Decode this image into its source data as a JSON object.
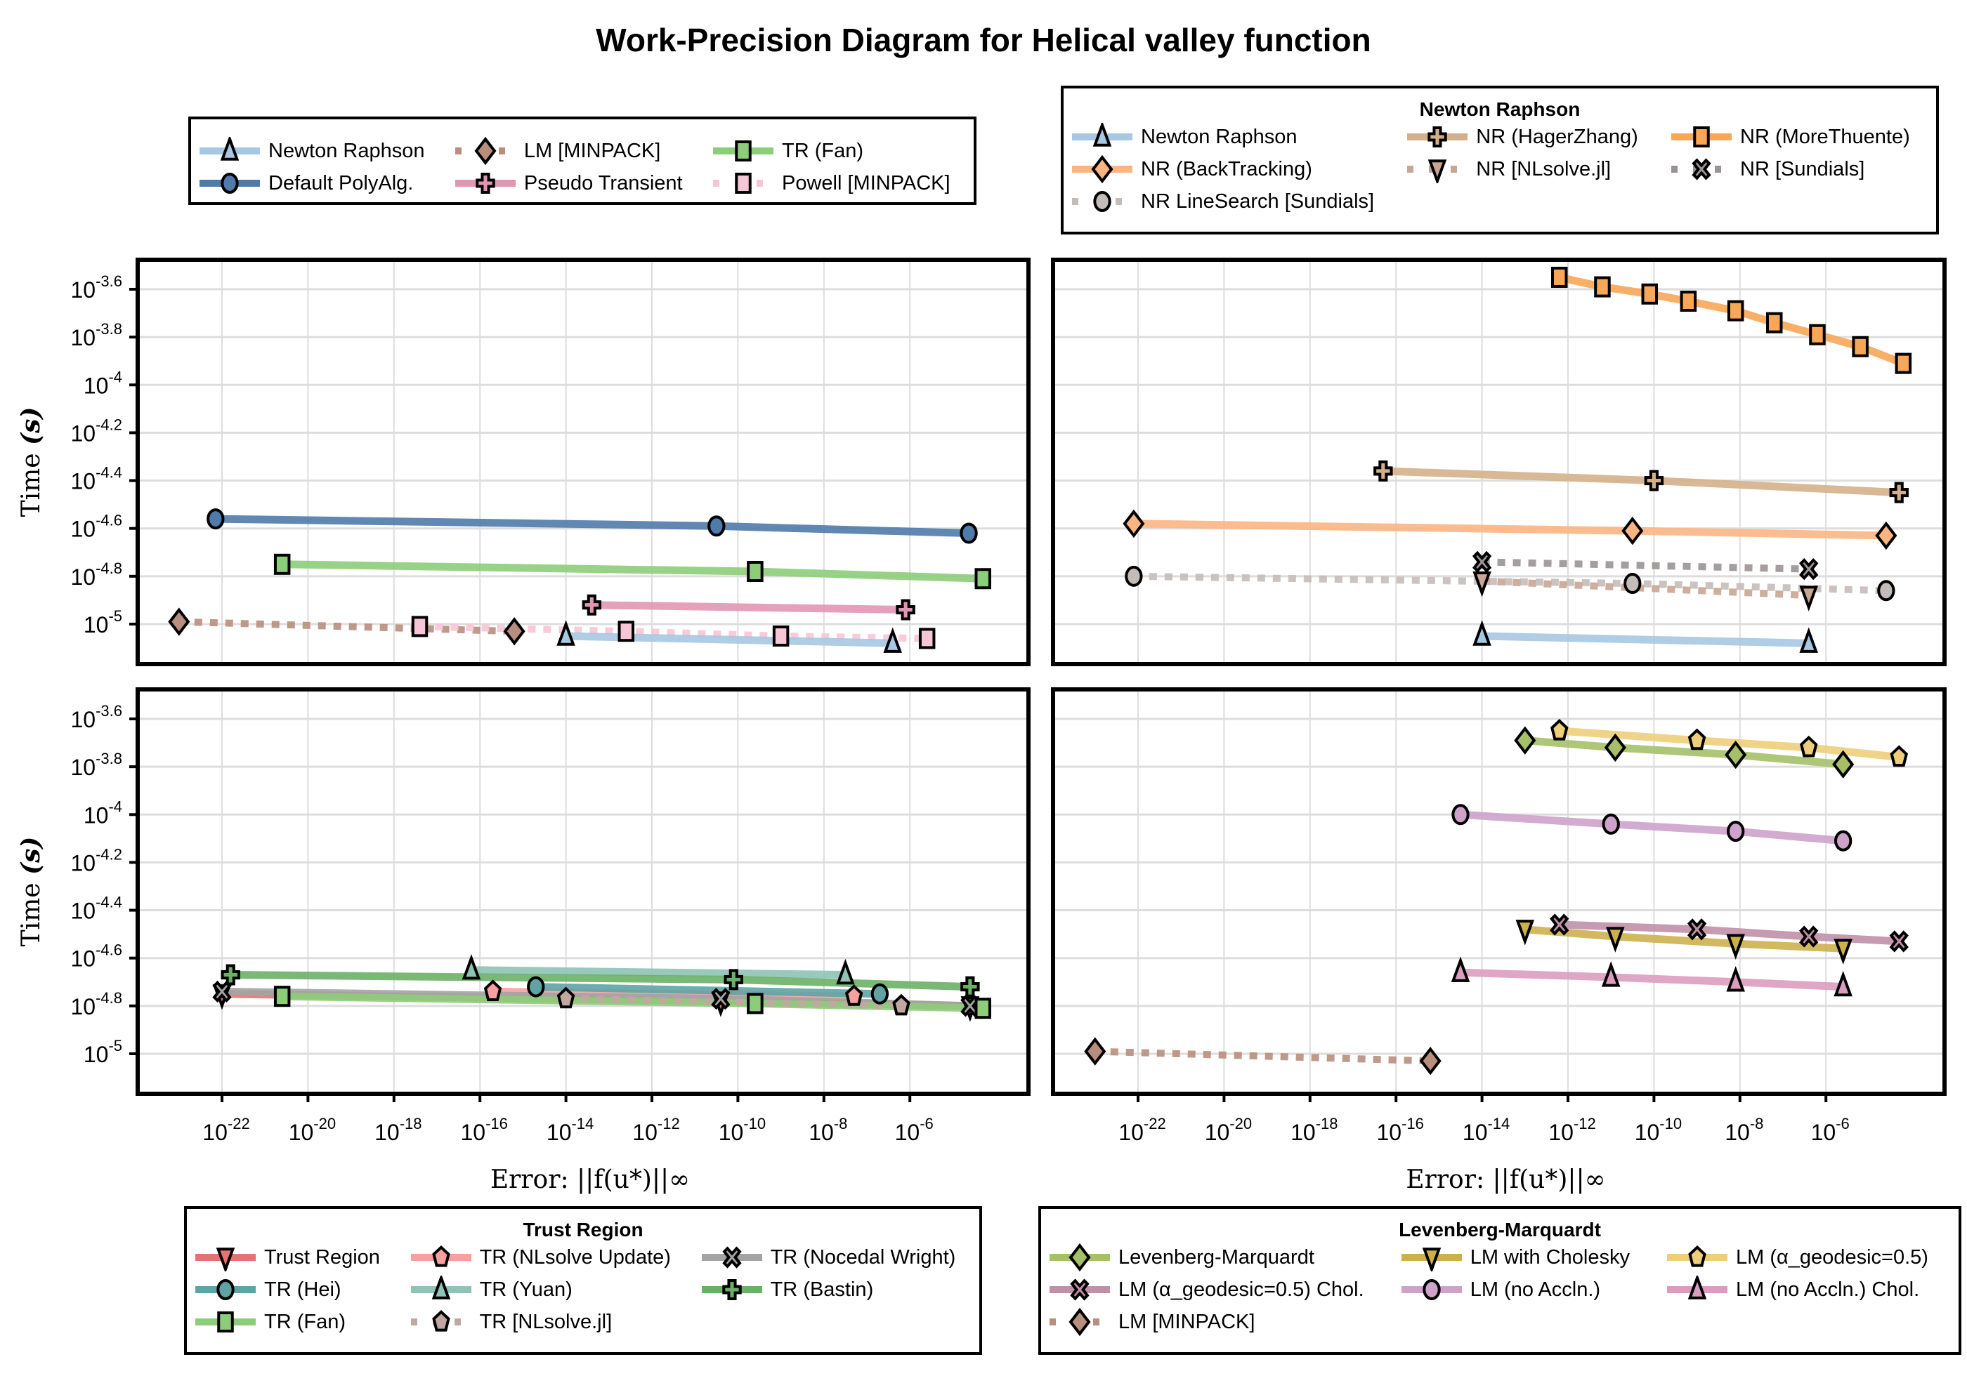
{
  "title": "Work-Precision Diagram for Helical valley function",
  "colors": {
    "newton_raphson": "#a6c8e2",
    "default_polyalg": "#4f7bab",
    "lm_minpack": "#b88f7e",
    "pseudo_transient": "#e296b3",
    "tr_fan": "#8ccd7a",
    "powell_minpack": "#f6c5d6",
    "nr_backtracking": "#fbb583",
    "nr_hagerzhang": "#d4b08a",
    "nr_morethuente": "#f8a657",
    "nr_nlsolve": "#c9a594",
    "nr_sundials": "#9b9393",
    "nr_linesearch_sundials": "#c4bcb9",
    "trust_region": "#e57373",
    "tr_nlsolve_update": "#f7a09e",
    "tr_nocedal_wright": "#a3a3a3",
    "tr_hei": "#5fa3a5",
    "tr_yuan": "#8ec3b5",
    "tr_bastin": "#6ab066",
    "tr_nlsolve": "#c0a8a0",
    "levenberg_marquardt": "#a5c068",
    "lm_cholesky": "#cdb04c",
    "lm_geodesic": "#efce7a",
    "lm_geodesic_chol": "#c08fa8",
    "lm_no_accln": "#cfa2cb",
    "lm_no_accln_chol": "#dc9cc0"
  },
  "legends": {
    "main": {
      "items": [
        {
          "label": "Newton Raphson",
          "key": "newton_raphson",
          "marker": "triangle-up",
          "style": "solid"
        },
        {
          "label": "LM [MINPACK]",
          "key": "lm_minpack",
          "marker": "diamond",
          "style": "dotted"
        },
        {
          "label": "TR (Fan)",
          "key": "tr_fan",
          "marker": "square",
          "style": "solid"
        },
        {
          "label": "Default PolyAlg.",
          "key": "default_polyalg",
          "marker": "circle",
          "style": "solid"
        },
        {
          "label": "Pseudo Transient",
          "key": "pseudo_transient",
          "marker": "cross",
          "style": "solid"
        },
        {
          "label": "Powell [MINPACK]",
          "key": "powell_minpack",
          "marker": "square",
          "style": "dotted"
        }
      ]
    },
    "newton_raphson": {
      "title": "Newton Raphson",
      "items": [
        {
          "label": "Newton Raphson",
          "key": "newton_raphson",
          "marker": "triangle-up",
          "style": "solid"
        },
        {
          "label": "NR (HagerZhang)",
          "key": "nr_hagerzhang",
          "marker": "cross",
          "style": "solid"
        },
        {
          "label": "NR (MoreThuente)",
          "key": "nr_morethuente",
          "marker": "square",
          "style": "solid"
        },
        {
          "label": "NR (BackTracking)",
          "key": "nr_backtracking",
          "marker": "diamond",
          "style": "solid"
        },
        {
          "label": "NR [NLsolve.jl]",
          "key": "nr_nlsolve",
          "marker": "triangle-down",
          "style": "dotted"
        },
        {
          "label": "NR [Sundials]",
          "key": "nr_sundials",
          "marker": "xcross",
          "style": "dotted"
        },
        {
          "label": "NR LineSearch [Sundials]",
          "key": "nr_linesearch_sundials",
          "marker": "circle",
          "style": "dotted"
        }
      ]
    },
    "trust_region": {
      "title": "Trust Region",
      "items": [
        {
          "label": "Trust Region",
          "key": "trust_region",
          "marker": "triangle-down",
          "style": "solid"
        },
        {
          "label": "TR (NLsolve Update)",
          "key": "tr_nlsolve_update",
          "marker": "pentagon",
          "style": "solid"
        },
        {
          "label": "TR (Nocedal Wright)",
          "key": "tr_nocedal_wright",
          "marker": "xcross",
          "style": "solid"
        },
        {
          "label": "TR (Hei)",
          "key": "tr_hei",
          "marker": "circle",
          "style": "solid"
        },
        {
          "label": "TR (Yuan)",
          "key": "tr_yuan",
          "marker": "triangle-up",
          "style": "solid"
        },
        {
          "label": "TR (Bastin)",
          "key": "tr_bastin",
          "marker": "cross",
          "style": "solid"
        },
        {
          "label": "TR (Fan)",
          "key": "tr_fan",
          "marker": "square",
          "style": "solid"
        },
        {
          "label": "TR [NLsolve.jl]",
          "key": "tr_nlsolve",
          "marker": "pentagon",
          "style": "dotted"
        }
      ]
    },
    "levenberg_marquardt": {
      "title": "Levenberg-Marquardt",
      "items": [
        {
          "label": "Levenberg-Marquardt",
          "key": "levenberg_marquardt",
          "marker": "diamond",
          "style": "solid"
        },
        {
          "label": "LM with Cholesky",
          "key": "lm_cholesky",
          "marker": "triangle-down",
          "style": "solid"
        },
        {
          "label": "LM (α_geodesic=0.5)",
          "key": "lm_geodesic",
          "marker": "pentagon",
          "style": "solid"
        },
        {
          "label": "LM (α_geodesic=0.5) Chol.",
          "key": "lm_geodesic_chol",
          "marker": "xcross",
          "style": "solid"
        },
        {
          "label": "LM (no Accln.)",
          "key": "lm_no_accln",
          "marker": "circle",
          "style": "solid"
        },
        {
          "label": "LM (no Accln.) Chol.",
          "key": "lm_no_accln_chol",
          "marker": "triangle-up",
          "style": "solid"
        },
        {
          "label": "LM [MINPACK]",
          "key": "lm_minpack",
          "marker": "diamond",
          "style": "dotted"
        }
      ]
    }
  },
  "chart_data": [
    {
      "type": "line",
      "panel": "top-left",
      "xlabel": "",
      "ylabel": "Time (s)",
      "xscale": "log10",
      "yscale": "log10",
      "xlim_log10": [
        -24.0,
        -3.2
      ],
      "ylim_log10": [
        -5.17,
        -3.48
      ],
      "x_ticks": [
        "10^-22",
        "10^-20",
        "10^-18",
        "10^-16",
        "10^-14",
        "10^-12",
        "10^-10",
        "10^-8",
        "10^-6"
      ],
      "y_ticks": [
        "10^-3.6",
        "10^-3.8",
        "10^-4",
        "10^-4.2",
        "10^-4.4",
        "10^-4.6",
        "10^-4.8",
        "10^-5"
      ],
      "grid": true,
      "series": [
        {
          "name": "Default PolyAlg.",
          "key": "default_polyalg",
          "marker": "circle",
          "style": "solid",
          "x_log10": [
            -22.15,
            -10.5,
            -4.63
          ],
          "y_log10": [
            -4.56,
            -4.59,
            -4.62
          ]
        },
        {
          "name": "TR (Fan)",
          "key": "tr_fan",
          "marker": "square",
          "style": "solid",
          "x_log10": [
            -20.6,
            -9.6,
            -4.3
          ],
          "y_log10": [
            -4.75,
            -4.78,
            -4.81
          ]
        },
        {
          "name": "Pseudo Transient",
          "key": "pseudo_transient",
          "marker": "cross",
          "style": "solid",
          "x_log10": [
            -13.4,
            -6.1
          ],
          "y_log10": [
            -4.92,
            -4.94
          ]
        },
        {
          "name": "LM [MINPACK]",
          "key": "lm_minpack",
          "marker": "diamond",
          "style": "dotted",
          "x_log10": [
            -23.0,
            -15.2
          ],
          "y_log10": [
            -4.99,
            -5.03
          ]
        },
        {
          "name": "Powell [MINPACK]",
          "key": "powell_minpack",
          "marker": "square",
          "style": "dotted",
          "x_log10": [
            -17.4,
            -12.6,
            -9.0,
            -5.6
          ],
          "y_log10": [
            -5.01,
            -5.03,
            -5.05,
            -5.06
          ]
        },
        {
          "name": "Newton Raphson",
          "key": "newton_raphson",
          "marker": "triangle-up",
          "style": "solid",
          "x_log10": [
            -14.0,
            -6.4
          ],
          "y_log10": [
            -5.05,
            -5.08
          ]
        }
      ]
    },
    {
      "type": "line",
      "panel": "top-right",
      "xlabel": "",
      "ylabel": "",
      "xscale": "log10",
      "yscale": "log10",
      "xlim_log10": [
        -24.0,
        -3.2
      ],
      "ylim_log10": [
        -5.17,
        -3.48
      ],
      "grid": true,
      "series": [
        {
          "name": "NR (MoreThuente)",
          "key": "nr_morethuente",
          "marker": "square",
          "style": "solid",
          "x_log10": [
            -12.2,
            -11.2,
            -10.1,
            -9.2,
            -8.1,
            -7.2,
            -6.2,
            -5.2,
            -4.2
          ],
          "y_log10": [
            -3.55,
            -3.59,
            -3.62,
            -3.65,
            -3.69,
            -3.74,
            -3.79,
            -3.84,
            -3.91
          ]
        },
        {
          "name": "NR (HagerZhang)",
          "key": "nr_hagerzhang",
          "marker": "cross",
          "style": "solid",
          "x_log10": [
            -16.3,
            -10.0,
            -4.3
          ],
          "y_log10": [
            -4.36,
            -4.4,
            -4.45
          ]
        },
        {
          "name": "NR (BackTracking)",
          "key": "nr_backtracking",
          "marker": "diamond",
          "style": "solid",
          "x_log10": [
            -22.1,
            -10.5,
            -4.6
          ],
          "y_log10": [
            -4.58,
            -4.61,
            -4.63
          ]
        },
        {
          "name": "NR [Sundials]",
          "key": "nr_sundials",
          "marker": "xcross",
          "style": "dotted",
          "x_log10": [
            -14.0,
            -6.4
          ],
          "y_log10": [
            -4.74,
            -4.77
          ]
        },
        {
          "name": "NR LineSearch [Sundials]",
          "key": "nr_linesearch_sundials",
          "marker": "circle",
          "style": "dotted",
          "x_log10": [
            -22.1,
            -10.5,
            -4.6
          ],
          "y_log10": [
            -4.8,
            -4.83,
            -4.86
          ]
        },
        {
          "name": "NR [NLsolve.jl]",
          "key": "nr_nlsolve",
          "marker": "triangle-down",
          "style": "dotted",
          "x_log10": [
            -14.0,
            -6.4
          ],
          "y_log10": [
            -4.82,
            -4.88
          ]
        },
        {
          "name": "Newton Raphson",
          "key": "newton_raphson",
          "marker": "triangle-up",
          "style": "solid",
          "x_log10": [
            -14.0,
            -6.4
          ],
          "y_log10": [
            -5.05,
            -5.08
          ]
        }
      ]
    },
    {
      "type": "line",
      "panel": "bottom-left",
      "xlabel": "Error: ||f(u*)||∞",
      "ylabel": "Time (s)",
      "xscale": "log10",
      "yscale": "log10",
      "xlim_log10": [
        -24.0,
        -3.2
      ],
      "ylim_log10": [
        -5.17,
        -3.48
      ],
      "grid": true,
      "series": [
        {
          "name": "Trust Region",
          "key": "trust_region",
          "marker": "triangle-down",
          "style": "solid",
          "x_log10": [
            -22.0,
            -10.4,
            -4.6
          ],
          "y_log10": [
            -4.75,
            -4.78,
            -4.8
          ]
        },
        {
          "name": "TR (NLsolve Update)",
          "key": "tr_nlsolve_update",
          "marker": "pentagon",
          "style": "solid",
          "x_log10": [
            -15.7,
            -7.3
          ],
          "y_log10": [
            -4.74,
            -4.76
          ]
        },
        {
          "name": "TR (Nocedal Wright)",
          "key": "tr_nocedal_wright",
          "marker": "xcross",
          "style": "solid",
          "x_log10": [
            -22.0,
            -10.4,
            -4.6
          ],
          "y_log10": [
            -4.74,
            -4.77,
            -4.8
          ]
        },
        {
          "name": "TR (Hei)",
          "key": "tr_hei",
          "marker": "circle",
          "style": "solid",
          "x_log10": [
            -14.7,
            -6.7
          ],
          "y_log10": [
            -4.72,
            -4.75
          ]
        },
        {
          "name": "TR (Yuan)",
          "key": "tr_yuan",
          "marker": "triangle-up",
          "style": "solid",
          "x_log10": [
            -16.2,
            -7.5
          ],
          "y_log10": [
            -4.65,
            -4.67
          ]
        },
        {
          "name": "TR (Bastin)",
          "key": "tr_bastin",
          "marker": "cross",
          "style": "solid",
          "x_log10": [
            -21.8,
            -10.1,
            -4.6
          ],
          "y_log10": [
            -4.67,
            -4.69,
            -4.72
          ]
        },
        {
          "name": "TR (Fan)",
          "key": "tr_fan",
          "marker": "square",
          "style": "solid",
          "x_log10": [
            -20.6,
            -9.6,
            -4.3
          ],
          "y_log10": [
            -4.76,
            -4.79,
            -4.81
          ]
        },
        {
          "name": "TR [NLsolve.jl]",
          "key": "tr_nlsolve",
          "marker": "pentagon",
          "style": "dotted",
          "x_log10": [
            -14.0,
            -6.2
          ],
          "y_log10": [
            -4.77,
            -4.8
          ]
        }
      ]
    },
    {
      "type": "line",
      "panel": "bottom-right",
      "xlabel": "Error: ||f(u*)||∞",
      "ylabel": "",
      "xscale": "log10",
      "yscale": "log10",
      "xlim_log10": [
        -24.0,
        -3.2
      ],
      "ylim_log10": [
        -5.17,
        -3.48
      ],
      "grid": true,
      "series": [
        {
          "name": "LM (α_geodesic=0.5)",
          "key": "lm_geodesic",
          "marker": "pentagon",
          "style": "solid",
          "x_log10": [
            -12.2,
            -9.0,
            -6.4,
            -4.3
          ],
          "y_log10": [
            -3.65,
            -3.69,
            -3.72,
            -3.76
          ]
        },
        {
          "name": "Levenberg-Marquardt",
          "key": "levenberg_marquardt",
          "marker": "diamond",
          "style": "solid",
          "x_log10": [
            -13.0,
            -10.9,
            -8.1,
            -5.6
          ],
          "y_log10": [
            -3.69,
            -3.72,
            -3.75,
            -3.79
          ]
        },
        {
          "name": "LM (no Accln.)",
          "key": "lm_no_accln",
          "marker": "circle",
          "style": "solid",
          "x_log10": [
            -14.5,
            -11.0,
            -8.1,
            -5.6
          ],
          "y_log10": [
            -4.0,
            -4.04,
            -4.07,
            -4.11
          ]
        },
        {
          "name": "LM with Cholesky",
          "key": "lm_cholesky",
          "marker": "triangle-down",
          "style": "solid",
          "x_log10": [
            -13.0,
            -10.9,
            -8.1,
            -5.6
          ],
          "y_log10": [
            -4.48,
            -4.51,
            -4.54,
            -4.56
          ]
        },
        {
          "name": "LM (α_geodesic=0.5) Chol.",
          "key": "lm_geodesic_chol",
          "marker": "xcross",
          "style": "solid",
          "x_log10": [
            -12.2,
            -9.0,
            -6.4,
            -4.3
          ],
          "y_log10": [
            -4.46,
            -4.48,
            -4.51,
            -4.53
          ]
        },
        {
          "name": "LM (no Accln.) Chol.",
          "key": "lm_no_accln_chol",
          "marker": "triangle-up",
          "style": "solid",
          "x_log10": [
            -14.5,
            -11.0,
            -8.1,
            -5.6
          ],
          "y_log10": [
            -4.66,
            -4.68,
            -4.7,
            -4.72
          ]
        },
        {
          "name": "LM [MINPACK]",
          "key": "lm_minpack",
          "marker": "diamond",
          "style": "dotted",
          "x_log10": [
            -23.0,
            -15.2
          ],
          "y_log10": [
            -4.99,
            -5.03
          ]
        }
      ]
    }
  ]
}
